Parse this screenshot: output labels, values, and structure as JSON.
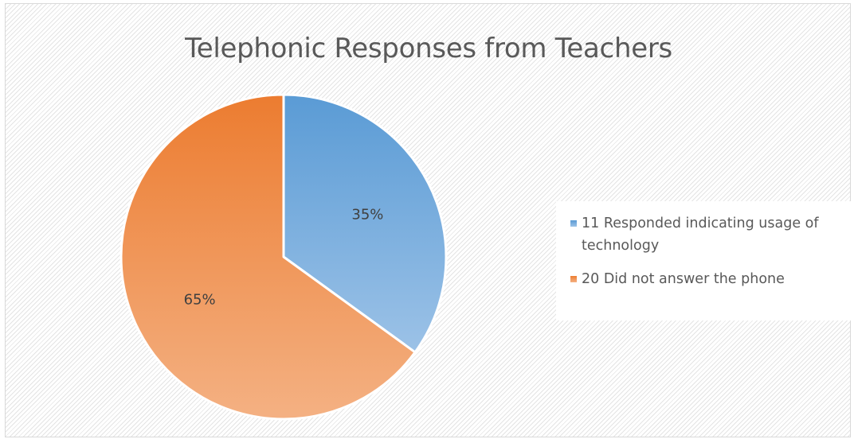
{
  "chart_data": {
    "type": "pie",
    "title": "Telephonic Responses from Teachers",
    "categories": [
      "11 Responded indicating usage of technology",
      "20 Did not answer the phone"
    ],
    "values": [
      35,
      65
    ],
    "data_labels": [
      "35%",
      "65%"
    ],
    "colors": [
      "#5b9bd5",
      "#ed7d31"
    ],
    "legend_position": "right"
  }
}
